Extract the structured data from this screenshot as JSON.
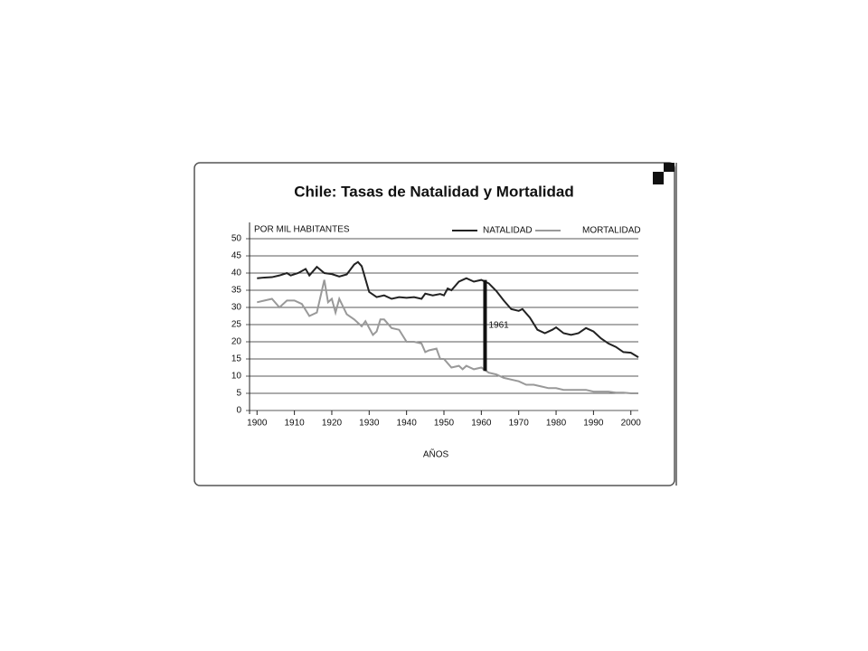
{
  "chart_data": {
    "type": "line",
    "title": "Chile: Tasas de Natalidad y Mortalidad",
    "y_label": "POR MIL HABITANTES",
    "x_label": "AÑOS",
    "xlim": [
      1898,
      2002
    ],
    "xticks": [
      1900,
      1910,
      1920,
      1930,
      1940,
      1950,
      1960,
      1970,
      1980,
      1990,
      2000
    ],
    "ylim": [
      0,
      50
    ],
    "yticks": [
      0,
      5,
      10,
      15,
      20,
      25,
      30,
      35,
      40,
      45,
      50
    ],
    "grid": true,
    "legend": "top-right",
    "series": [
      {
        "name": "NATALIDAD",
        "color": "#222222",
        "x": [
          1900,
          1902,
          1904,
          1906,
          1908,
          1909,
          1911,
          1913,
          1914,
          1916,
          1918,
          1920,
          1922,
          1924,
          1926,
          1927,
          1928,
          1930,
          1932,
          1934,
          1936,
          1938,
          1940,
          1942,
          1944,
          1945,
          1947,
          1949,
          1950,
          1951,
          1952,
          1954,
          1956,
          1958,
          1960,
          1962,
          1964,
          1966,
          1968,
          1970,
          1971,
          1973,
          1975,
          1977,
          1979,
          1980,
          1982,
          1984,
          1986,
          1988,
          1990,
          1992,
          1994,
          1996,
          1998,
          2000,
          2002
        ],
        "values": [
          38.5,
          38.7,
          38.8,
          39.3,
          40,
          39.3,
          40,
          41.2,
          39.3,
          41.8,
          40,
          39.7,
          39,
          39.6,
          42.5,
          43.2,
          42,
          34.5,
          33,
          33.5,
          32.5,
          33,
          32.8,
          33,
          32.5,
          34,
          33.5,
          33.9,
          33.5,
          35.5,
          35,
          37.5,
          38.5,
          37.5,
          38,
          37,
          34.8,
          32,
          29.5,
          29,
          29.5,
          27,
          23.5,
          22.5,
          23.5,
          24.2,
          22.5,
          22,
          22.5,
          24,
          23,
          21,
          19.5,
          18.5,
          17,
          16.8,
          15.5
        ]
      },
      {
        "name": "MORTALIDAD",
        "color": "#999999",
        "x": [
          1900,
          1902,
          1904,
          1906,
          1908,
          1910,
          1912,
          1914,
          1916,
          1918,
          1919,
          1920,
          1921,
          1922,
          1924,
          1926,
          1928,
          1929,
          1931,
          1932,
          1933,
          1934,
          1936,
          1938,
          1940,
          1942,
          1944,
          1945,
          1946,
          1948,
          1949,
          1950,
          1952,
          1954,
          1955,
          1956,
          1958,
          1960,
          1962,
          1964,
          1966,
          1968,
          1970,
          1972,
          1974,
          1976,
          1978,
          1980,
          1982,
          1984,
          1986,
          1988,
          1990,
          1992,
          1994,
          1996,
          1998,
          2000,
          2002
        ],
        "values": [
          31.5,
          32,
          32.5,
          30,
          32,
          32,
          31,
          27.5,
          28.5,
          38,
          31.5,
          32.5,
          28.5,
          32.5,
          28,
          26.5,
          24.5,
          26,
          22,
          23,
          26.5,
          26.5,
          24,
          23.5,
          20,
          20,
          19.5,
          17,
          17.5,
          18,
          15,
          15,
          12.5,
          13,
          12,
          13,
          12,
          12.5,
          11,
          10.5,
          9.5,
          9,
          8.5,
          7.5,
          7.5,
          7,
          6.5,
          6.5,
          6,
          6,
          6,
          6,
          5.5,
          5.5,
          5.5,
          5.2,
          5.2,
          5,
          5
        ]
      }
    ],
    "annotation": {
      "label": "1961",
      "x": 1961,
      "y_from": 11.5,
      "y_to": 38
    }
  }
}
